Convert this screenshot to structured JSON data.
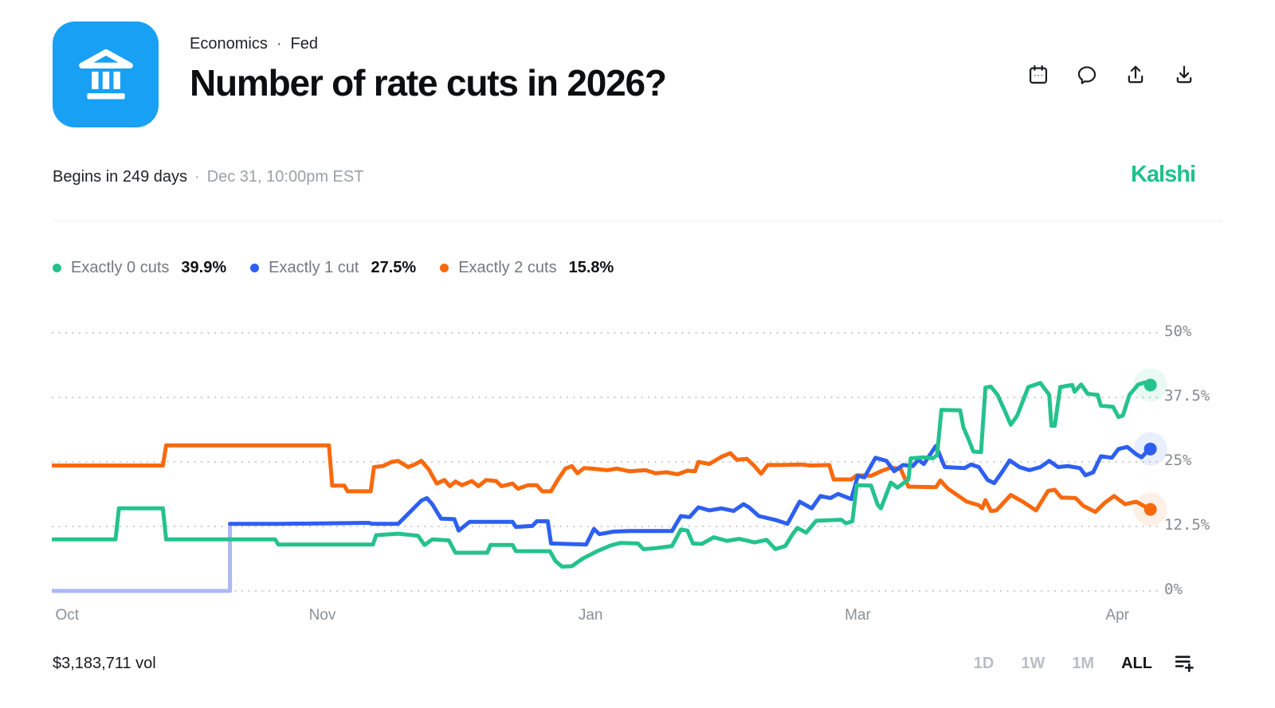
{
  "header": {
    "breadcrumb": {
      "category": "Economics",
      "separator": "·",
      "subcategory": "Fed"
    },
    "title": "Number of rate cuts in 2026?",
    "icons": [
      "bank-icon",
      "calendar-icon",
      "comment-icon",
      "share-icon",
      "download-icon"
    ]
  },
  "subheader": {
    "begins": "Begins in 249 days",
    "separator": "·",
    "closes": "Dec 31, 10:00pm EST",
    "brand": "Kalshi"
  },
  "legend": [
    {
      "label": "Exactly 0 cuts",
      "value": "39.9%",
      "color": "#25c28c"
    },
    {
      "label": "Exactly 1 cut",
      "value": "27.5%",
      "color": "#2d5ff1"
    },
    {
      "label": "Exactly 2 cuts",
      "value": "15.8%",
      "color": "#f8690d"
    }
  ],
  "chart_data": {
    "type": "line",
    "title": "Number of rate cuts in 2026?",
    "ylim": [
      0,
      50
    ],
    "grid": "dotted horizontal",
    "legend_position": "top-left",
    "y_axis": {
      "side": "right",
      "ticks": [
        {
          "label": "50%",
          "v": 50
        },
        {
          "label": "37.5%",
          "v": 37.5
        },
        {
          "label": "25%",
          "v": 25
        },
        {
          "label": "12.5%",
          "v": 12.5
        },
        {
          "label": "0%",
          "v": 0
        }
      ]
    },
    "x_axis": {
      "ticks": [
        {
          "label": "Oct",
          "t": 1.4
        },
        {
          "label": "Nov",
          "t": 24.6
        },
        {
          "label": "Jan",
          "t": 49.0
        },
        {
          "label": "Mar",
          "t": 73.3
        },
        {
          "label": "Apr",
          "t": 96.9
        }
      ]
    },
    "series": [
      {
        "name": "Exactly 2 cuts",
        "current": "15.8%",
        "color": "#f8690d",
        "points": [
          [
            0,
            24.3
          ],
          [
            10.1,
            24.3
          ],
          [
            10.4,
            28.2
          ],
          [
            25.2,
            28.2
          ],
          [
            25.5,
            20.4
          ],
          [
            26.6,
            20.4
          ],
          [
            26.9,
            19.3
          ],
          [
            29,
            19.3
          ],
          [
            29.3,
            24
          ],
          [
            30.1,
            24.2
          ],
          [
            30.9,
            25
          ],
          [
            31.5,
            25.2
          ],
          [
            32.4,
            24
          ],
          [
            33,
            24.5
          ],
          [
            33.6,
            25.2
          ],
          [
            34.3,
            23.5
          ],
          [
            35,
            20.8
          ],
          [
            35.7,
            21.5
          ],
          [
            36.2,
            20.3
          ],
          [
            36.7,
            21.2
          ],
          [
            37.3,
            20.5
          ],
          [
            38.2,
            21.3
          ],
          [
            38.8,
            20.3
          ],
          [
            39.5,
            21.5
          ],
          [
            40.4,
            21.3
          ],
          [
            40.9,
            20.3
          ],
          [
            41.9,
            20.8
          ],
          [
            42.4,
            19.8
          ],
          [
            43.3,
            20.5
          ],
          [
            44.1,
            20.5
          ],
          [
            44.6,
            19.3
          ],
          [
            45.4,
            19.3
          ],
          [
            46,
            21.5
          ],
          [
            46.7,
            23.7
          ],
          [
            47.3,
            24.2
          ],
          [
            47.8,
            22.8
          ],
          [
            48.4,
            23.8
          ],
          [
            49.1,
            23.7
          ],
          [
            50.5,
            23.4
          ],
          [
            51.4,
            23.7
          ],
          [
            52.5,
            23.2
          ],
          [
            54,
            23.4
          ],
          [
            54.9,
            22.8
          ],
          [
            55.9,
            23
          ],
          [
            56.9,
            22.6
          ],
          [
            57.8,
            23.3
          ],
          [
            58.5,
            23.2
          ],
          [
            58.8,
            25
          ],
          [
            59.8,
            24.6
          ],
          [
            60.9,
            26
          ],
          [
            61.7,
            26.7
          ],
          [
            62.3,
            25.4
          ],
          [
            63.2,
            25.6
          ],
          [
            63.9,
            24.2
          ],
          [
            64.5,
            22.7
          ],
          [
            65.1,
            24.4
          ],
          [
            66.3,
            24.4
          ],
          [
            68.1,
            24.5
          ],
          [
            69,
            24.3
          ],
          [
            70.7,
            24.4
          ],
          [
            71.1,
            21.6
          ],
          [
            72.7,
            21.6
          ],
          [
            73.2,
            22.4
          ],
          [
            74.5,
            22.3
          ],
          [
            75.4,
            23.2
          ],
          [
            76.3,
            23.9
          ],
          [
            77.2,
            23.6
          ],
          [
            77.9,
            20.2
          ],
          [
            80.4,
            20.1
          ],
          [
            80.8,
            21.4
          ],
          [
            81.5,
            19.8
          ],
          [
            83.2,
            17.3
          ],
          [
            84.3,
            16.6
          ],
          [
            84.6,
            16
          ],
          [
            84.9,
            17.6
          ],
          [
            85.4,
            15.5
          ],
          [
            85.9,
            15.6
          ],
          [
            87.2,
            18.6
          ],
          [
            88.3,
            17.3
          ],
          [
            89.5,
            15.6
          ],
          [
            90.6,
            19.4
          ],
          [
            91.2,
            19.6
          ],
          [
            91.8,
            18.1
          ],
          [
            93.1,
            18
          ],
          [
            93.8,
            16.5
          ],
          [
            94.9,
            15.3
          ],
          [
            95.7,
            17
          ],
          [
            96.6,
            18.4
          ],
          [
            97.6,
            16.8
          ],
          [
            98.6,
            17.3
          ],
          [
            99.9,
            15.8
          ]
        ]
      },
      {
        "name": "Exactly 1 cut",
        "current": "27.5%",
        "color": "#2d5ff1",
        "pre_color": "#abb8f3",
        "pre_points": [
          [
            0,
            0
          ],
          [
            16.2,
            0
          ],
          [
            16.2,
            13
          ]
        ],
        "points": [
          [
            16.2,
            13
          ],
          [
            20.7,
            13
          ],
          [
            28.8,
            13.2
          ],
          [
            29.2,
            13
          ],
          [
            31.5,
            13
          ],
          [
            33.6,
            17.5
          ],
          [
            34.1,
            18
          ],
          [
            34.6,
            16.8
          ],
          [
            35.4,
            14
          ],
          [
            36.6,
            13.9
          ],
          [
            37,
            11.7
          ],
          [
            38,
            13.4
          ],
          [
            41.9,
            13.4
          ],
          [
            42.2,
            12.4
          ],
          [
            43.7,
            12.6
          ],
          [
            44.1,
            13.5
          ],
          [
            45.1,
            13.5
          ],
          [
            45.4,
            9.2
          ],
          [
            48.6,
            9
          ],
          [
            49.3,
            12
          ],
          [
            49.8,
            11
          ],
          [
            51.1,
            11.5
          ],
          [
            52.5,
            11.6
          ],
          [
            56.4,
            11.6
          ],
          [
            57.2,
            14.5
          ],
          [
            58,
            14.3
          ],
          [
            58.8,
            16.2
          ],
          [
            59.8,
            15.6
          ],
          [
            60.9,
            16
          ],
          [
            62,
            15.5
          ],
          [
            62.9,
            16.8
          ],
          [
            63.4,
            16.2
          ],
          [
            64.3,
            14.5
          ],
          [
            65.9,
            13.7
          ],
          [
            66.9,
            13
          ],
          [
            68,
            17.3
          ],
          [
            69.1,
            16
          ],
          [
            69.9,
            18.4
          ],
          [
            70.8,
            18
          ],
          [
            71.5,
            18.8
          ],
          [
            72.7,
            17.8
          ],
          [
            73.3,
            22.3
          ],
          [
            73.9,
            22
          ],
          [
            74.9,
            25.8
          ],
          [
            75.9,
            25.2
          ],
          [
            76.6,
            23.2
          ],
          [
            77.4,
            24.4
          ],
          [
            78.3,
            24.2
          ],
          [
            78.8,
            25.4
          ],
          [
            79.3,
            24.6
          ],
          [
            80.4,
            28.1
          ],
          [
            81.2,
            24
          ],
          [
            83,
            23.8
          ],
          [
            83.6,
            24.5
          ],
          [
            84.3,
            24
          ],
          [
            85.1,
            21.5
          ],
          [
            85.7,
            20.9
          ],
          [
            86.4,
            23
          ],
          [
            87.1,
            25.3
          ],
          [
            88,
            24
          ],
          [
            88.9,
            23.4
          ],
          [
            89.9,
            24
          ],
          [
            90.7,
            25.2
          ],
          [
            91.5,
            24
          ],
          [
            92.4,
            24.2
          ],
          [
            93.5,
            23.8
          ],
          [
            94,
            22.4
          ],
          [
            94.7,
            23
          ],
          [
            95.4,
            26.1
          ],
          [
            96.4,
            25.8
          ],
          [
            97,
            27.5
          ],
          [
            97.8,
            27.9
          ],
          [
            98.6,
            26.5
          ],
          [
            99.1,
            25.9
          ],
          [
            99.5,
            26.8
          ],
          [
            99.9,
            27.5
          ]
        ]
      },
      {
        "name": "Exactly 0 cuts",
        "current": "39.9%",
        "color": "#25c28c",
        "points": [
          [
            0,
            10
          ],
          [
            5.8,
            10
          ],
          [
            6.1,
            16
          ],
          [
            10.1,
            16
          ],
          [
            10.4,
            10
          ],
          [
            20.3,
            10
          ],
          [
            20.6,
            9
          ],
          [
            29.2,
            9
          ],
          [
            29.5,
            10.8
          ],
          [
            31.5,
            11.1
          ],
          [
            33.3,
            10.7
          ],
          [
            33.9,
            8.9
          ],
          [
            34.6,
            10
          ],
          [
            36.1,
            9.8
          ],
          [
            36.7,
            7.4
          ],
          [
            39.6,
            7.4
          ],
          [
            39.9,
            8.9
          ],
          [
            41.9,
            8.9
          ],
          [
            42.2,
            7.7
          ],
          [
            45.3,
            7.7
          ],
          [
            45.8,
            5.8
          ],
          [
            46.4,
            4.7
          ],
          [
            47.3,
            4.8
          ],
          [
            48.3,
            6.3
          ],
          [
            49.6,
            7.7
          ],
          [
            50.8,
            8.8
          ],
          [
            51.7,
            9.3
          ],
          [
            53.3,
            9.2
          ],
          [
            53.8,
            8.1
          ],
          [
            55,
            8.3
          ],
          [
            56.4,
            8.7
          ],
          [
            57.2,
            11.9
          ],
          [
            57.8,
            11.7
          ],
          [
            58.3,
            9.2
          ],
          [
            59.1,
            9.1
          ],
          [
            60.2,
            10.4
          ],
          [
            61.4,
            9.7
          ],
          [
            62.5,
            10.1
          ],
          [
            63.9,
            9.4
          ],
          [
            65,
            9.9
          ],
          [
            65.8,
            8.1
          ],
          [
            66.7,
            8.7
          ],
          [
            67.4,
            11.1
          ],
          [
            67.8,
            12.2
          ],
          [
            68.6,
            11.3
          ],
          [
            69.5,
            13.6
          ],
          [
            71.8,
            13.8
          ],
          [
            72.2,
            13.1
          ],
          [
            72.8,
            13.5
          ],
          [
            73.2,
            20.5
          ],
          [
            74.5,
            20.4
          ],
          [
            75.1,
            16.7
          ],
          [
            75.4,
            16
          ],
          [
            76.3,
            21
          ],
          [
            76.9,
            20
          ],
          [
            77.9,
            21.6
          ],
          [
            78.1,
            25.7
          ],
          [
            79.3,
            25.9
          ],
          [
            80.1,
            25.7
          ],
          [
            80.5,
            26.3
          ],
          [
            80.9,
            35.1
          ],
          [
            82.6,
            35
          ],
          [
            82.9,
            31.7
          ],
          [
            83.4,
            29.2
          ],
          [
            83.8,
            27
          ],
          [
            84.5,
            26.9
          ],
          [
            84.9,
            39.4
          ],
          [
            85.4,
            39.6
          ],
          [
            86,
            38
          ],
          [
            86.7,
            34.7
          ],
          [
            87.2,
            32.2
          ],
          [
            87.8,
            34
          ],
          [
            88.8,
            39.5
          ],
          [
            89.9,
            40.3
          ],
          [
            90.7,
            38
          ],
          [
            90.9,
            32
          ],
          [
            91.2,
            32
          ],
          [
            91.7,
            39.5
          ],
          [
            92.8,
            39.9
          ],
          [
            93,
            38.6
          ],
          [
            93.6,
            40
          ],
          [
            94.2,
            38.2
          ],
          [
            95.1,
            38
          ],
          [
            95.4,
            35.9
          ],
          [
            96.5,
            35.7
          ],
          [
            97,
            33.7
          ],
          [
            97.4,
            34
          ],
          [
            98,
            38
          ],
          [
            98.8,
            40
          ],
          [
            99.4,
            40.4
          ],
          [
            99.9,
            39.9
          ]
        ]
      }
    ]
  },
  "footer": {
    "volume": "$3,183,711 vol",
    "ranges": [
      "1D",
      "1W",
      "1M",
      "ALL"
    ],
    "active_range": "ALL",
    "icons": [
      "list-plus-icon"
    ]
  }
}
